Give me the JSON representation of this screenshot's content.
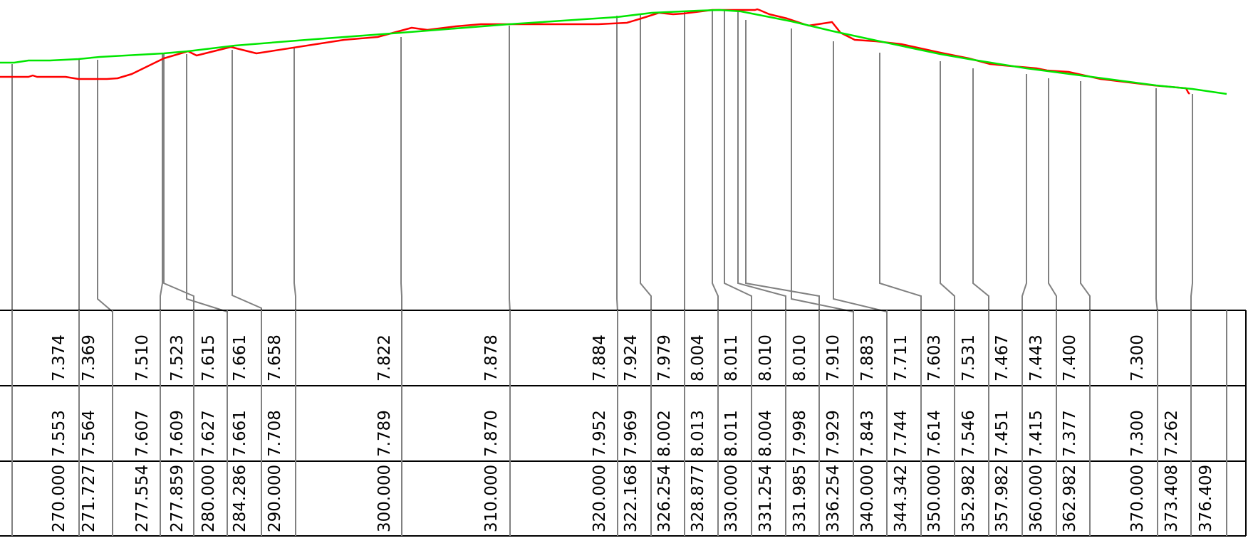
{
  "colors": {
    "existing_ground": "#ff0000",
    "design_line": "#00e600",
    "leader_lines": "#808080",
    "table_lines": "#000000",
    "text": "#000000"
  },
  "design_line": [
    [
      270.0,
      7.553
    ],
    [
      271.727,
      7.564
    ],
    [
      277.554,
      7.607
    ],
    [
      277.859,
      7.609
    ],
    [
      280.0,
      7.627
    ],
    [
      284.286,
      7.661
    ],
    [
      290.0,
      7.708
    ],
    [
      300.0,
      7.789
    ],
    [
      310.0,
      7.87
    ],
    [
      320.0,
      7.952
    ],
    [
      322.168,
      7.969
    ],
    [
      326.254,
      8.002
    ],
    [
      328.877,
      8.013
    ],
    [
      330.0,
      8.011
    ],
    [
      331.254,
      8.004
    ],
    [
      331.985,
      7.998
    ],
    [
      336.254,
      7.929
    ],
    [
      340.0,
      7.843
    ],
    [
      344.342,
      7.744
    ],
    [
      350.0,
      7.614
    ],
    [
      352.982,
      7.546
    ],
    [
      357.982,
      7.451
    ],
    [
      360.0,
      7.415
    ],
    [
      362.982,
      7.377
    ],
    [
      370.0,
      7.3
    ],
    [
      373.408,
      7.262
    ]
  ],
  "existing_ground": [
    [
      270.0,
      7.374
    ],
    [
      271.727,
      7.369
    ],
    [
      277.554,
      7.51
    ],
    [
      277.859,
      7.523
    ],
    [
      280.0,
      7.615
    ],
    [
      284.286,
      7.661
    ],
    [
      290.0,
      7.658
    ],
    [
      300.0,
      7.822
    ],
    [
      310.0,
      7.878
    ],
    [
      320.0,
      7.884
    ],
    [
      322.168,
      7.924
    ],
    [
      326.254,
      7.979
    ],
    [
      328.877,
      8.004
    ],
    [
      330.0,
      8.011
    ],
    [
      331.254,
      8.01
    ],
    [
      331.985,
      8.01
    ],
    [
      336.254,
      7.91
    ],
    [
      340.0,
      7.883
    ],
    [
      344.342,
      7.711
    ],
    [
      350.0,
      7.603
    ],
    [
      352.982,
      7.531
    ],
    [
      357.982,
      7.467
    ],
    [
      360.0,
      7.443
    ],
    [
      362.982,
      7.4
    ],
    [
      370.0,
      7.3
    ]
  ],
  "table": {
    "row_ground_levels": [
      "7.374",
      "7.369",
      "7.510",
      "7.523",
      "7.615",
      "7.661",
      "7.658",
      "7.822",
      "7.878",
      "7.884",
      "7.924",
      "7.979",
      "8.004",
      "8.011",
      "8.010",
      "8.010",
      "7.910",
      "7.883",
      "7.711",
      "7.603",
      "7.531",
      "7.467",
      "7.443",
      "7.400",
      "7.300"
    ],
    "row_design_levels": [
      "7.553",
      "7.564",
      "7.607",
      "7.609",
      "7.627",
      "7.661",
      "7.708",
      "7.789",
      "7.870",
      "7.952",
      "7.969",
      "8.002",
      "8.013",
      "8.011",
      "8.004",
      "7.998",
      "7.929",
      "7.843",
      "7.744",
      "7.614",
      "7.546",
      "7.451",
      "7.415",
      "7.377",
      "7.300",
      "7.262"
    ],
    "row_chainages": [
      "270.000",
      "271.727",
      "277.554",
      "277.859",
      "280.000",
      "284.286",
      "290.000",
      "300.000",
      "310.000",
      "320.000",
      "322.168",
      "326.254",
      "328.877",
      "330.000",
      "331.254",
      "331.985",
      "336.254",
      "340.000",
      "344.342",
      "350.000",
      "352.982",
      "357.982",
      "360.000",
      "362.982",
      "370.000",
      "373.408",
      "376.409"
    ]
  }
}
